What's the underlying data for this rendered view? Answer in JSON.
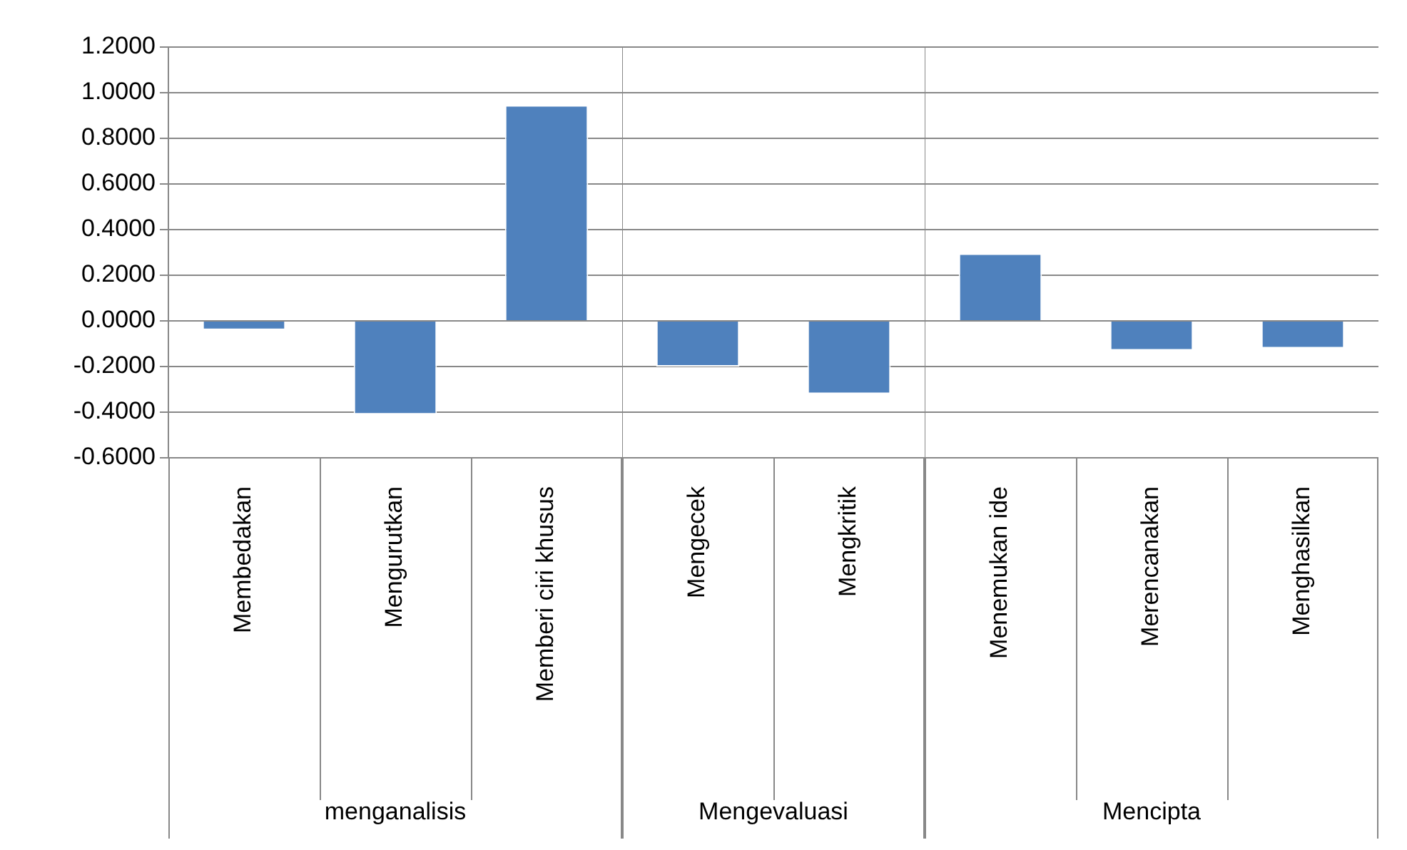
{
  "chart_data": [
    {
      "type": "bar",
      "categories": [
        "Membedakan",
        "Mengurutkan",
        "Memberi ciri khusus"
      ],
      "values": [
        -0.04,
        -0.41,
        0.945
      ],
      "color": "#4f81bd",
      "xlabel": "menganalisis",
      "ylim": [
        -0.6,
        1.2
      ],
      "yticks": [
        {
          "value": -0.6,
          "label": "-0.6000"
        },
        {
          "value": -0.4,
          "label": "-0.4000"
        },
        {
          "value": -0.2,
          "label": "-0.2000"
        },
        {
          "value": 0,
          "label": "0.0000"
        },
        {
          "value": 0.2,
          "label": "0.2000"
        },
        {
          "value": 0.4,
          "label": "0.4000"
        },
        {
          "value": 0.6,
          "label": "0.6000"
        },
        {
          "value": 0.8,
          "label": "0.8000"
        },
        {
          "value": 1,
          "label": "1.0000"
        },
        {
          "value": 1.2,
          "label": "1.2000"
        }
      ],
      "grid": "y"
    },
    {
      "type": "bar",
      "categories": [
        "Mengecek",
        "Mengkritik"
      ],
      "values": [
        -0.2,
        -0.32
      ],
      "color": "#4f81bd",
      "xlabel": "Mengevaluasi",
      "ylim": [
        -0.6,
        1.2
      ],
      "yticks": [
        -0.6,
        -0.4,
        -0.2,
        0,
        0.2,
        0.4,
        0.6,
        0.8,
        1,
        1.2
      ],
      "grid": "y",
      "tick_labels": "x"
    },
    {
      "type": "bar",
      "categories": [
        "Menemukan ide",
        "Merencanakan",
        "Menghasilkan"
      ],
      "values": [
        0.295,
        -0.13,
        -0.12
      ],
      "color": "#4f81bd",
      "xlabel": "Mencipta",
      "ylim": [
        -0.6,
        1.2
      ],
      "yticks": [
        -0.6,
        -0.4,
        -0.2,
        0,
        0.2,
        0.4,
        0.6,
        0.8,
        1,
        1.2
      ],
      "grid": "y",
      "tick_labels": "x"
    }
  ]
}
